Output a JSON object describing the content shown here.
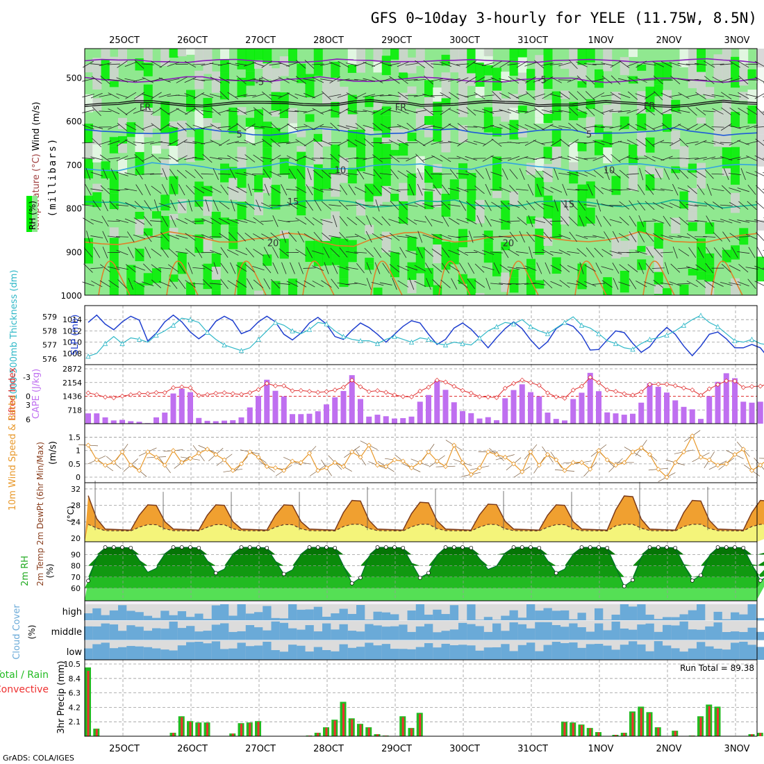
{
  "title": "GFS 0~10day 3-hourly for YELE (11.75W, 8.5N)",
  "credit": "GrADS: COLA/IGES",
  "dates": [
    "25OCT",
    "26OCT",
    "27OCT",
    "28OCT",
    "29OCT",
    "30OCT",
    "31OCT",
    "1NOV",
    "2NOV",
    "3NOV"
  ],
  "colors": {
    "rh_light": "#d2d2d2",
    "rh_mid": "#e8e8e8",
    "rh_green1": "#90e890",
    "rh_green2": "#00ee00",
    "purple": "#8a1fb8",
    "blue": "#1f5ad8",
    "lightblue": "#33a4e0",
    "teal": "#10b090",
    "orange": "#e0802a",
    "magenta": "#e020a0",
    "slp": "#1f3fcf",
    "thick": "#30b8c8",
    "li": "#e03030",
    "cape": "#bf6ff0",
    "wind": "#e8982a",
    "cloud": "#6aaad8",
    "cloud_bg": "#dcdcdc",
    "rain_total": "#22bb22",
    "rain_conv": "#ee3030"
  },
  "chart_data": [
    {
      "panel": "cross_section",
      "type": "heatmap",
      "ylabel": "(millibars)",
      "left_labels": {
        "rh": "RH (%)",
        "temp": "Temperature (°C)",
        "wind": "Wind (m/s)"
      },
      "y_ticks": [
        500,
        600,
        700,
        800,
        900,
        1000
      ],
      "contour_labels": [
        {
          "label": "-5",
          "level_mb": 510,
          "time_frac": 0.26
        },
        {
          "label": "-5",
          "level_mb": 505,
          "time_frac": 0.68
        },
        {
          "label": "FR",
          "level_mb": 568,
          "time_frac": 0.09
        },
        {
          "label": "FR",
          "level_mb": 568,
          "time_frac": 0.47
        },
        {
          "label": "FR",
          "level_mb": 565,
          "time_frac": 0.84
        },
        {
          "label": "5",
          "level_mb": 630,
          "time_frac": 0.23
        },
        {
          "label": "5",
          "level_mb": 630,
          "time_frac": 0.75
        },
        {
          "label": "10",
          "level_mb": 712,
          "time_frac": 0.38
        },
        {
          "label": "10",
          "level_mb": 712,
          "time_frac": 0.78
        },
        {
          "label": "15",
          "level_mb": 785,
          "time_frac": 0.31
        },
        {
          "label": "15",
          "level_mb": 790,
          "time_frac": 0.72
        },
        {
          "label": "20",
          "level_mb": 880,
          "time_frac": 0.28
        },
        {
          "label": "20",
          "level_mb": 880,
          "time_frac": 0.63
        }
      ]
    },
    {
      "panel": "slp_thickness",
      "type": "line",
      "left_label": "1000-500mb Thickness (dm)",
      "right_label": "SLP (mb)",
      "thickness_ticks": [
        576,
        577,
        578,
        579
      ],
      "slp_ticks": [
        1008,
        1010,
        1012,
        1014
      ],
      "extra_tick": "2872",
      "slp": [
        1013.5,
        1014.8,
        1013.2,
        1012.2,
        1013.6,
        1014.6,
        1013.9,
        1010.2,
        1011.6,
        1013.6,
        1014.8,
        1013.6,
        1011.8,
        1010.6,
        1011.7,
        1013.7,
        1014.6,
        1013.8,
        1011.5,
        1012.1,
        1013.6,
        1014.6,
        1013.6,
        1011.4,
        1010.4,
        1011.6,
        1013.4,
        1014.4,
        1013.2,
        1011.0,
        1010.5,
        1012.1,
        1013.4,
        1012.6,
        1011.4,
        1010.0,
        1011.4,
        1012.8,
        1013.8,
        1013.4,
        1011.4,
        1009.6,
        1010.5,
        1012.5,
        1013.4,
        1012.3,
        1010.7,
        1009.0,
        1010.8,
        1012.4,
        1013.6,
        1012.4,
        1010.4,
        1008.8,
        1010.1,
        1012.4,
        1013.4,
        1012.8,
        1011.2,
        1008.6,
        1008.7,
        1010.4,
        1012.0,
        1011.7,
        1009.8,
        1008.2,
        1009.2,
        1011.2,
        1012.6,
        1011.4,
        1009.3,
        1007.6,
        1009.3,
        1011.4,
        1011.8,
        1010.6,
        1009.0,
        1009.0,
        1009.6,
        1009.0,
        1007.1,
        1009.0,
        1009.6
      ],
      "thickness": [
        576.2,
        576.4,
        577.1,
        577.6,
        577.1,
        577.5,
        577.4,
        577.2,
        577.7,
        578.0,
        578.4,
        578.9,
        578.8,
        578.6,
        577.9,
        577.4,
        577.0,
        576.8,
        576.6,
        576.8,
        577.4,
        578.0,
        578.6,
        578.4,
        578.0,
        577.8,
        578.1,
        578.6,
        578.5,
        578.0,
        577.6,
        577.4,
        577.3,
        577.3,
        577.1,
        577.4,
        577.6,
        577.4,
        577.2,
        577.5,
        577.4,
        577.1,
        577.0,
        577.2,
        577.1,
        577.0,
        577.5,
        578.0,
        578.3,
        578.6,
        578.5,
        578.8,
        578.3,
        578.0,
        577.8,
        578.2,
        578.6,
        579.0,
        578.4,
        578.2,
        577.8,
        577.3,
        577.1,
        576.8,
        576.7,
        577.1,
        577.4,
        577.5,
        577.7,
        578.0,
        578.4,
        578.8,
        579.1,
        578.6,
        578.3,
        577.8,
        577.3,
        577.2,
        577.4,
        577.1,
        577.0,
        576.9,
        576.5
      ]
    },
    {
      "panel": "li_cape",
      "type": "bar",
      "left_label": "Lifted Index",
      "right_label": "CAPE (J/kg)",
      "li_ticks": [
        -3,
        0,
        3,
        6
      ],
      "cape_ticks": [
        718,
        1436,
        2154,
        2872
      ],
      "cape": [
        540,
        540,
        330,
        170,
        200,
        130,
        100,
        30,
        330,
        580,
        1580,
        1830,
        1650,
        300,
        150,
        130,
        160,
        180,
        330,
        850,
        1450,
        2300,
        1720,
        1430,
        500,
        500,
        520,
        650,
        1010,
        1380,
        1710,
        2540,
        1290,
        370,
        470,
        390,
        270,
        290,
        370,
        1150,
        1500,
        2250,
        1770,
        1120,
        660,
        550,
        270,
        340,
        180,
        1330,
        1760,
        2060,
        1650,
        1430,
        580,
        250,
        170,
        1290,
        1620,
        2660,
        1700,
        590,
        540,
        470,
        520,
        1100,
        2120,
        1930,
        1630,
        1220,
        880,
        750,
        250,
        1440,
        2190,
        2640,
        2380,
        1150,
        1100,
        1150,
        1700,
        1730,
        1300
      ]
    },
    {
      "panel": "wind10m",
      "type": "line",
      "left_label": "10m Wind Speed & Barbs",
      "unit": "(m/s)",
      "y_ticks": [
        0,
        0.5,
        1,
        1.5
      ],
      "speed": [
        1.2,
        0.65,
        0.45,
        0.55,
        0.95,
        0.45,
        0.25,
        0.95,
        0.75,
        0.45,
        1.0,
        0.55,
        0.7,
        0.9,
        1.05,
        0.85,
        0.65,
        0.25,
        0.5,
        0.95,
        0.75,
        0.4,
        0.35,
        0.25,
        0.6,
        0.55,
        0.9,
        0.25,
        0.35,
        0.55,
        0.4,
        0.95,
        0.75,
        1.2,
        0.45,
        0.4,
        0.65,
        0.6,
        0.35,
        0.55,
        0.95,
        0.6,
        0.4,
        1.2,
        0.55,
        0.1,
        0.35,
        0.95,
        0.85,
        0.75,
        0.5,
        0.2,
        0.95,
        0.45,
        0.85,
        0.65,
        0.25,
        0.55,
        0.55,
        0.3,
        1.0,
        0.65,
        0.45,
        0.55,
        0.95,
        1.1,
        0.85,
        0.3,
        0.0,
        0.55,
        0.95,
        1.55,
        0.75,
        0.65,
        0.45,
        0.5,
        0.85,
        1.05,
        0.25,
        0.45,
        0.7,
        0.6,
        0.75
      ]
    },
    {
      "panel": "temp2m",
      "type": "area",
      "left_label": "2m Temp 2m DewPt (6hr Min/Max)",
      "unit": "(°C)",
      "y_ticks": [
        20,
        24,
        28,
        32
      ]
    },
    {
      "panel": "rh2m",
      "type": "area",
      "left_label": "2m RH",
      "unit": "(%)",
      "y_ticks": [
        60,
        70,
        80,
        90
      ]
    },
    {
      "panel": "cloud",
      "type": "area",
      "left_label": "Cloud Cover",
      "unit": "(%)",
      "levels": [
        "high",
        "middle",
        "low"
      ]
    },
    {
      "panel": "precip",
      "type": "bar",
      "left_label": "3hr Precip (mm)",
      "legend": [
        "Total / Rain",
        "Convective"
      ],
      "run_total_label": "Run Total = 89.38",
      "y_ticks": [
        2.1,
        4.2,
        6.3,
        8.4,
        10.5
      ],
      "total": [
        10.0,
        1.1,
        0,
        0,
        0,
        0,
        0,
        0,
        0,
        0,
        0.5,
        2.9,
        2.2,
        2.0,
        2.0,
        0,
        0,
        0.4,
        1.9,
        2.0,
        2.2,
        0,
        0,
        0,
        0,
        0,
        0.1,
        0.5,
        1.3,
        2.4,
        5.0,
        2.6,
        1.8,
        1.3,
        0.3,
        0.1,
        0,
        2.9,
        1.2,
        3.4,
        0,
        0,
        0,
        0,
        0,
        0,
        0,
        0,
        0,
        0,
        0,
        0,
        0,
        0,
        0,
        0,
        2.1,
        2.0,
        1.7,
        1.2,
        0.6,
        0,
        0.2,
        0.5,
        3.6,
        4.3,
        3.5,
        1.3,
        0,
        0.8,
        0,
        0.1,
        2.9,
        4.6,
        4.3,
        0,
        0,
        0,
        0.3,
        0.5,
        2.2,
        1.0,
        0.2
      ]
    }
  ]
}
